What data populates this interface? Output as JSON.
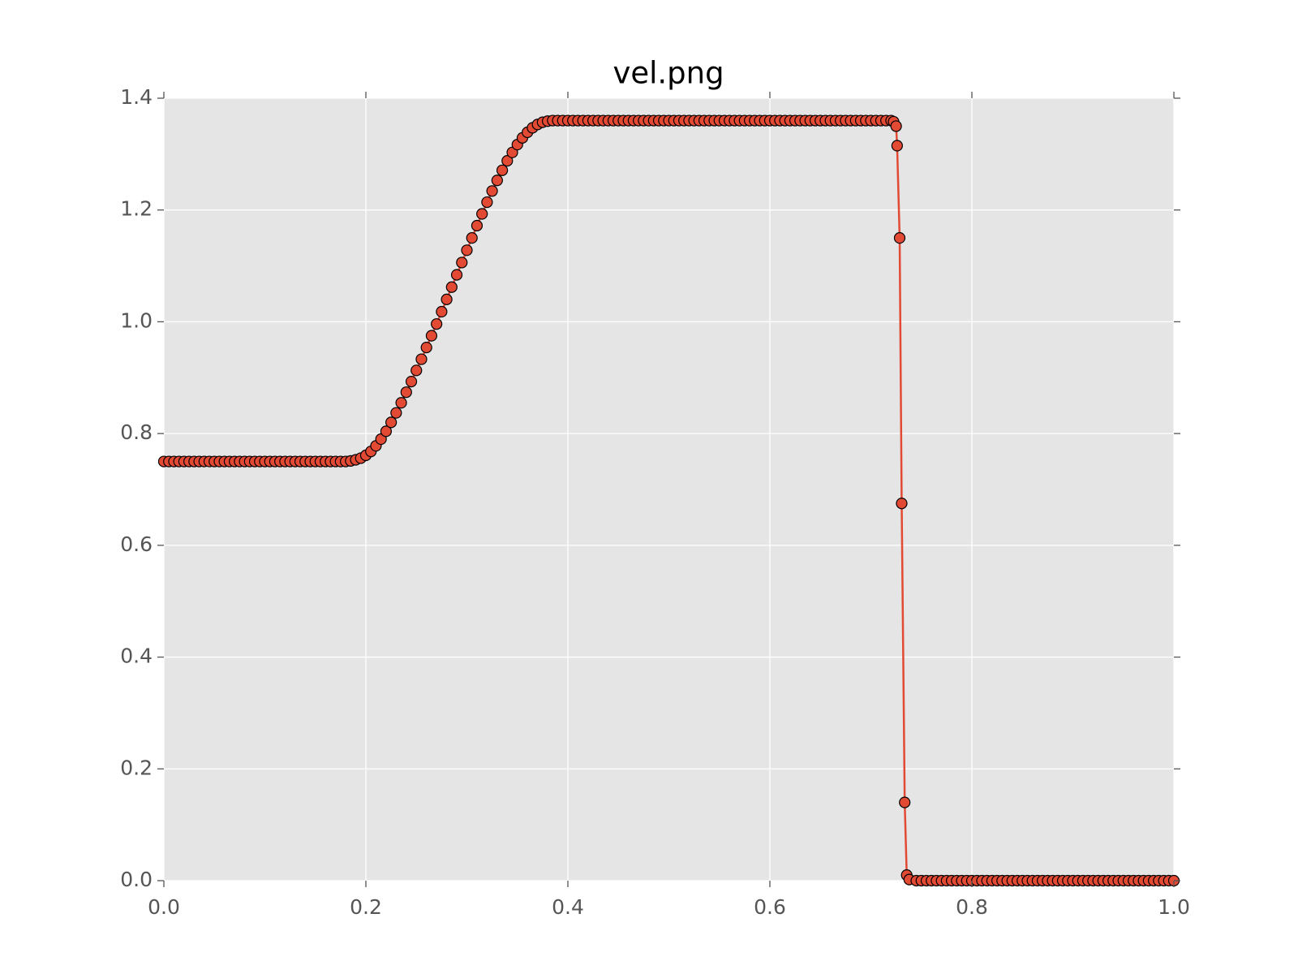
{
  "chart_data": {
    "type": "line",
    "title": "vel.png",
    "x": [
      0,
      0.005,
      0.01,
      0.015,
      0.02,
      0.025,
      0.03,
      0.035,
      0.04,
      0.045,
      0.05,
      0.055,
      0.06,
      0.065,
      0.07,
      0.075,
      0.08,
      0.085,
      0.09,
      0.095,
      0.1,
      0.105,
      0.11,
      0.115,
      0.12,
      0.125,
      0.13,
      0.135,
      0.14,
      0.145,
      0.15,
      0.155,
      0.16,
      0.165,
      0.17,
      0.175,
      0.18,
      0.185,
      0.19,
      0.195,
      0.2,
      0.205,
      0.21,
      0.215,
      0.22,
      0.225,
      0.23,
      0.235,
      0.24,
      0.245,
      0.25,
      0.255,
      0.26,
      0.265,
      0.27,
      0.275,
      0.28,
      0.285,
      0.29,
      0.295,
      0.3,
      0.305,
      0.31,
      0.315,
      0.32,
      0.325,
      0.33,
      0.335,
      0.34,
      0.345,
      0.35,
      0.355,
      0.36,
      0.365,
      0.37,
      0.375,
      0.38,
      0.385,
      0.39,
      0.395,
      0.4,
      0.405,
      0.41,
      0.415,
      0.42,
      0.425,
      0.43,
      0.435,
      0.44,
      0.445,
      0.45,
      0.455,
      0.46,
      0.465,
      0.47,
      0.475,
      0.48,
      0.485,
      0.49,
      0.495,
      0.5,
      0.505,
      0.51,
      0.515,
      0.52,
      0.525,
      0.53,
      0.535,
      0.54,
      0.545,
      0.55,
      0.555,
      0.56,
      0.565,
      0.57,
      0.575,
      0.58,
      0.585,
      0.59,
      0.595,
      0.6,
      0.605,
      0.61,
      0.615,
      0.62,
      0.625,
      0.63,
      0.635,
      0.64,
      0.645,
      0.65,
      0.655,
      0.66,
      0.665,
      0.67,
      0.675,
      0.68,
      0.685,
      0.69,
      0.695,
      0.7,
      0.705,
      0.71,
      0.715,
      0.72,
      0.7225,
      0.725,
      0.726,
      0.7285,
      0.7305,
      0.7335,
      0.7355,
      0.738,
      0.745,
      0.75,
      0.755,
      0.76,
      0.765,
      0.77,
      0.775,
      0.78,
      0.785,
      0.79,
      0.795,
      0.8,
      0.805,
      0.81,
      0.815,
      0.82,
      0.825,
      0.83,
      0.835,
      0.84,
      0.845,
      0.85,
      0.855,
      0.86,
      0.865,
      0.87,
      0.875,
      0.88,
      0.885,
      0.89,
      0.895,
      0.9,
      0.905,
      0.91,
      0.915,
      0.92,
      0.925,
      0.93,
      0.935,
      0.94,
      0.945,
      0.95,
      0.955,
      0.96,
      0.965,
      0.97,
      0.975,
      0.98,
      0.985,
      0.99,
      0.995,
      1
    ],
    "series": [
      {
        "color": "#e24a33",
        "values": [
          0.75,
          0.75,
          0.75,
          0.75,
          0.75,
          0.75,
          0.75,
          0.75,
          0.75,
          0.75,
          0.75,
          0.75,
          0.75,
          0.75,
          0.75,
          0.75,
          0.75,
          0.75,
          0.75,
          0.75,
          0.75,
          0.75,
          0.75,
          0.75,
          0.75,
          0.75,
          0.75,
          0.75,
          0.75,
          0.75,
          0.75,
          0.75,
          0.75,
          0.75,
          0.75,
          0.75,
          0.75,
          0.751,
          0.753,
          0.756,
          0.761,
          0.768,
          0.778,
          0.79,
          0.804,
          0.82,
          0.837,
          0.855,
          0.874,
          0.893,
          0.913,
          0.933,
          0.954,
          0.975,
          0.996,
          1.018,
          1.04,
          1.062,
          1.084,
          1.106,
          1.128,
          1.15,
          1.172,
          1.193,
          1.214,
          1.234,
          1.253,
          1.271,
          1.288,
          1.303,
          1.317,
          1.329,
          1.339,
          1.347,
          1.353,
          1.357,
          1.359,
          1.36,
          1.36,
          1.36,
          1.36,
          1.36,
          1.36,
          1.36,
          1.36,
          1.36,
          1.36,
          1.36,
          1.36,
          1.36,
          1.36,
          1.36,
          1.36,
          1.36,
          1.36,
          1.36,
          1.36,
          1.36,
          1.36,
          1.36,
          1.36,
          1.36,
          1.36,
          1.36,
          1.36,
          1.36,
          1.36,
          1.36,
          1.36,
          1.36,
          1.36,
          1.36,
          1.36,
          1.36,
          1.36,
          1.36,
          1.36,
          1.36,
          1.36,
          1.36,
          1.36,
          1.36,
          1.36,
          1.36,
          1.36,
          1.36,
          1.36,
          1.36,
          1.36,
          1.36,
          1.36,
          1.36,
          1.36,
          1.36,
          1.36,
          1.36,
          1.36,
          1.36,
          1.36,
          1.36,
          1.36,
          1.36,
          1.36,
          1.36,
          1.36,
          1.358,
          1.35,
          1.315,
          1.15,
          0.675,
          0.14,
          0.01,
          0.002,
          0,
          0,
          0,
          0,
          0,
          0,
          0,
          0,
          0,
          0,
          0,
          0,
          0,
          0,
          0,
          0,
          0,
          0,
          0,
          0,
          0,
          0,
          0,
          0,
          0,
          0,
          0,
          0,
          0,
          0,
          0,
          0,
          0,
          0,
          0,
          0,
          0,
          0,
          0,
          0,
          0,
          0,
          0,
          0,
          0,
          0,
          0,
          0,
          0,
          0,
          0,
          0
        ]
      }
    ],
    "xlim": [
      0,
      1
    ],
    "xticks": [
      {
        "value": 0,
        "label": "0.0"
      },
      0.2,
      0.4,
      0.6,
      0.8,
      {
        "value": 1,
        "label": "1.0"
      }
    ],
    "ylim": [
      0,
      1.4
    ],
    "yticks": [
      {
        "value": 0,
        "label": "0.0"
      },
      0.2,
      0.4,
      0.6,
      0.8,
      {
        "value": 1,
        "label": "1.0"
      },
      1.2,
      1.4
    ],
    "grid": true
  }
}
